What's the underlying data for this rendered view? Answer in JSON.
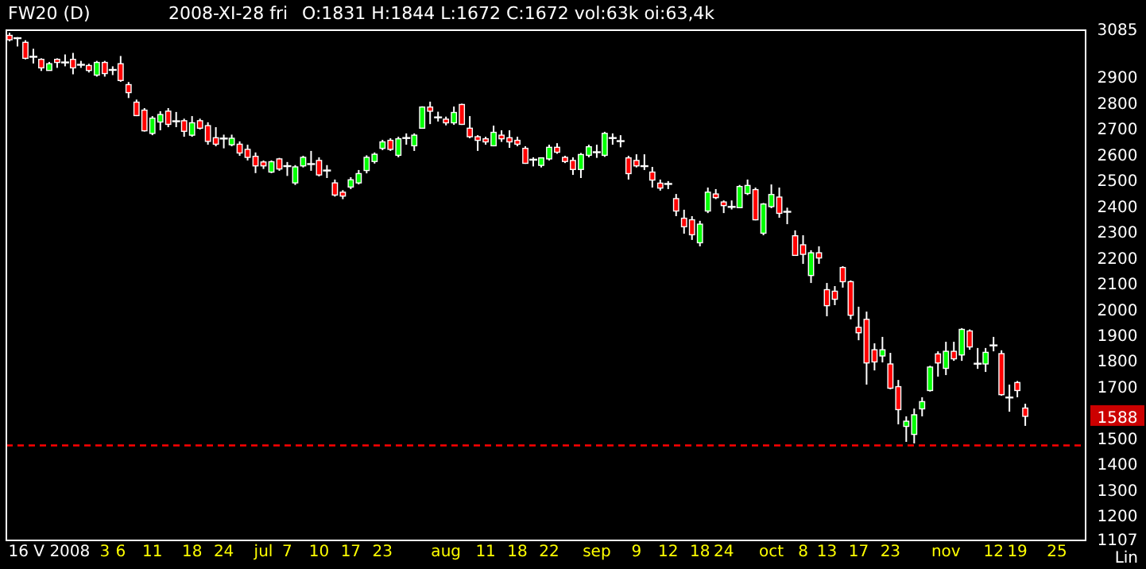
{
  "chart_data": {
    "type": "candlestick",
    "title": "FW20 (D)",
    "subtitle": "2008-XI-28 fri",
    "annotations": [
      "O:1831 H:1844 L:1672 C:1672 vol:63k oi:63,4k",
      "Lin",
      {
        "text": "1588",
        "y": 1588
      }
    ],
    "categories": [
      null,
      null,
      null,
      null,
      null,
      "16 V 2008",
      null,
      null,
      null,
      null,
      null,
      null,
      "3",
      null,
      "6",
      null,
      null,
      null,
      "11",
      null,
      null,
      null,
      null,
      "18",
      null,
      null,
      null,
      "24",
      null,
      null,
      null,
      null,
      "jul",
      null,
      null,
      "7",
      null,
      null,
      null,
      "10",
      null,
      null,
      null,
      "17",
      null,
      null,
      null,
      "23",
      null,
      null,
      null,
      null,
      null,
      null,
      null,
      "aug",
      null,
      null,
      null,
      null,
      "11",
      null,
      null,
      null,
      "18",
      null,
      null,
      null,
      "22",
      null,
      null,
      null,
      null,
      null,
      "sep",
      null,
      null,
      null,
      null,
      "9",
      null,
      null,
      null,
      "12",
      null,
      null,
      null,
      "18",
      null,
      null,
      "24",
      null,
      null,
      null,
      null,
      null,
      "oct",
      null,
      null,
      null,
      "8",
      null,
      null,
      "13",
      null,
      null,
      null,
      "17",
      null,
      null,
      null,
      "23",
      null,
      null,
      null,
      null,
      null,
      null,
      "nov",
      null,
      null,
      null,
      null,
      null,
      "12",
      null,
      null,
      "19",
      null,
      null,
      null,
      null,
      "25",
      null,
      null,
      null
    ],
    "ohlc": [
      [
        3065,
        3075,
        3042,
        3048
      ],
      [
        3054,
        3058,
        3022,
        3054
      ],
      [
        3038,
        3046,
        2972,
        2976
      ],
      [
        2982,
        3013,
        2956,
        2982
      ],
      [
        2972,
        2976,
        2927,
        2939
      ],
      [
        2929,
        2962,
        2929,
        2955
      ],
      [
        2972,
        2976,
        2939,
        2960
      ],
      [
        2960,
        2991,
        2945,
        2960
      ],
      [
        2972,
        2997,
        2914,
        2939
      ],
      [
        2951,
        2966,
        2939,
        2951
      ],
      [
        2948,
        2955,
        2921,
        2929
      ],
      [
        2911,
        2966,
        2905,
        2960
      ],
      [
        2960,
        2966,
        2905,
        2917
      ],
      [
        2931,
        2945,
        2911,
        2931
      ],
      [
        2955,
        2985,
        2885,
        2890
      ],
      [
        2874,
        2884,
        2822,
        2843
      ],
      [
        2806,
        2816,
        2752,
        2754
      ],
      [
        2775,
        2783,
        2692,
        2695
      ],
      [
        2685,
        2752,
        2678,
        2744
      ],
      [
        2729,
        2771,
        2697,
        2758
      ],
      [
        2771,
        2783,
        2709,
        2720
      ],
      [
        2732,
        2768,
        2709,
        2732
      ],
      [
        2734,
        2742,
        2672,
        2693
      ],
      [
        2678,
        2752,
        2672,
        2726
      ],
      [
        2734,
        2742,
        2700,
        2705
      ],
      [
        2715,
        2728,
        2641,
        2654
      ],
      [
        2668,
        2709,
        2635,
        2643
      ],
      [
        2665,
        2680,
        2627,
        2665
      ],
      [
        2641,
        2680,
        2635,
        2666
      ],
      [
        2643,
        2654,
        2598,
        2609
      ],
      [
        2623,
        2641,
        2580,
        2592
      ],
      [
        2596,
        2611,
        2531,
        2559
      ],
      [
        2574,
        2580,
        2547,
        2559
      ],
      [
        2535,
        2580,
        2531,
        2575
      ],
      [
        2586,
        2590,
        2540,
        2547
      ],
      [
        2558,
        2574,
        2520,
        2558
      ],
      [
        2493,
        2562,
        2485,
        2555
      ],
      [
        2559,
        2598,
        2553,
        2592
      ],
      [
        2566,
        2617,
        2540,
        2566
      ],
      [
        2580,
        2592,
        2518,
        2524
      ],
      [
        2541,
        2562,
        2512,
        2541
      ],
      [
        2493,
        2506,
        2440,
        2446
      ],
      [
        2457,
        2465,
        2430,
        2442
      ],
      [
        2477,
        2515,
        2469,
        2505
      ],
      [
        2493,
        2543,
        2487,
        2529
      ],
      [
        2541,
        2600,
        2530,
        2592
      ],
      [
        2576,
        2611,
        2568,
        2604
      ],
      [
        2627,
        2660,
        2620,
        2652
      ],
      [
        2658,
        2666,
        2617,
        2623
      ],
      [
        2600,
        2672,
        2592,
        2664
      ],
      [
        2667,
        2685,
        2641,
        2667
      ],
      [
        2637,
        2685,
        2617,
        2678
      ],
      [
        2705,
        2790,
        2703,
        2787
      ],
      [
        2787,
        2808,
        2721,
        2771
      ],
      [
        2747,
        2769,
        2731,
        2747
      ],
      [
        2740,
        2750,
        2716,
        2726
      ],
      [
        2726,
        2789,
        2718,
        2766
      ],
      [
        2797,
        2800,
        2718,
        2720
      ],
      [
        2705,
        2752,
        2666,
        2672
      ],
      [
        2672,
        2678,
        2617,
        2658
      ],
      [
        2664,
        2672,
        2641,
        2652
      ],
      [
        2637,
        2715,
        2635,
        2689
      ],
      [
        2678,
        2697,
        2652,
        2664
      ],
      [
        2668,
        2697,
        2629,
        2652
      ],
      [
        2658,
        2672,
        2635,
        2643
      ],
      [
        2627,
        2635,
        2567,
        2569
      ],
      [
        2583,
        2592,
        2557,
        2583
      ],
      [
        2561,
        2592,
        2553,
        2590
      ],
      [
        2586,
        2641,
        2580,
        2631
      ],
      [
        2631,
        2647,
        2606,
        2612
      ],
      [
        2592,
        2598,
        2570,
        2576
      ],
      [
        2580,
        2592,
        2524,
        2545
      ],
      [
        2545,
        2609,
        2512,
        2603
      ],
      [
        2600,
        2641,
        2592,
        2633
      ],
      [
        2612,
        2641,
        2590,
        2612
      ],
      [
        2600,
        2691,
        2594,
        2685
      ],
      [
        2667,
        2685,
        2641,
        2667
      ],
      [
        2655,
        2678,
        2631,
        2655
      ],
      [
        2590,
        2598,
        2506,
        2529
      ],
      [
        2580,
        2604,
        2553,
        2559
      ],
      [
        2558,
        2604,
        2543,
        2558
      ],
      [
        2535,
        2555,
        2475,
        2504
      ],
      [
        2492,
        2506,
        2463,
        2473
      ],
      [
        2489,
        2500,
        2469,
        2489
      ],
      [
        2432,
        2450,
        2364,
        2384
      ],
      [
        2356,
        2389,
        2296,
        2323
      ],
      [
        2350,
        2364,
        2272,
        2292
      ],
      [
        2261,
        2346,
        2247,
        2333
      ],
      [
        2384,
        2475,
        2376,
        2457
      ],
      [
        2450,
        2469,
        2430,
        2436
      ],
      [
        2419,
        2425,
        2376,
        2405
      ],
      [
        2400,
        2425,
        2390,
        2400
      ],
      [
        2397,
        2485,
        2395,
        2479
      ],
      [
        2452,
        2506,
        2446,
        2483
      ],
      [
        2467,
        2475,
        2348,
        2350
      ],
      [
        2298,
        2415,
        2290,
        2411
      ],
      [
        2401,
        2487,
        2395,
        2448
      ],
      [
        2438,
        2475,
        2358,
        2375
      ],
      [
        2381,
        2397,
        2333,
        2381
      ],
      [
        2288,
        2309,
        2210,
        2212
      ],
      [
        2253,
        2290,
        2179,
        2216
      ],
      [
        2134,
        2232,
        2105,
        2222
      ],
      [
        2222,
        2247,
        2179,
        2202
      ],
      [
        2079,
        2105,
        1976,
        2017
      ],
      [
        2073,
        2093,
        2019,
        2042
      ],
      [
        2165,
        2170,
        2087,
        2110
      ],
      [
        2110,
        2115,
        1964,
        1980
      ],
      [
        1933,
        2013,
        1883,
        1912
      ],
      [
        1964,
        1994,
        1711,
        1795
      ],
      [
        1846,
        1871,
        1766,
        1799
      ],
      [
        1822,
        1896,
        1797,
        1846
      ],
      [
        1791,
        1834,
        1693,
        1697
      ],
      [
        1703,
        1729,
        1557,
        1614
      ],
      [
        1549,
        1588,
        1489,
        1569
      ],
      [
        1518,
        1618,
        1483,
        1594
      ],
      [
        1617,
        1662,
        1588,
        1645
      ],
      [
        1688,
        1784,
        1684,
        1779
      ],
      [
        1830,
        1840,
        1742,
        1795
      ],
      [
        1774,
        1877,
        1748,
        1840
      ],
      [
        1840,
        1877,
        1803,
        1811
      ],
      [
        1826,
        1930,
        1803,
        1925
      ],
      [
        1919,
        1925,
        1846,
        1857
      ],
      [
        1792,
        1853,
        1772,
        1792
      ],
      [
        1791,
        1853,
        1760,
        1836
      ],
      [
        1863,
        1896,
        1840,
        1863
      ],
      [
        1831,
        1844,
        1668,
        1672
      ],
      [
        1661,
        1711,
        1606,
        1661
      ],
      [
        1719,
        1725,
        1662,
        1688
      ],
      [
        1620,
        1637,
        1551,
        1588
      ],
      null,
      null,
      null,
      null,
      null,
      null,
      null
    ],
    "ylim": [
      1107,
      3085
    ],
    "yticks": [
      1107,
      1200,
      1300,
      1400,
      1500,
      1700,
      1800,
      1900,
      2000,
      2100,
      2200,
      2300,
      2400,
      2500,
      2600,
      2700,
      2800,
      2900,
      3085
    ],
    "ref_lines": [
      {
        "axis": "y",
        "value": 1475,
        "color": "#ff0000",
        "line_style": "dashed"
      }
    ]
  }
}
